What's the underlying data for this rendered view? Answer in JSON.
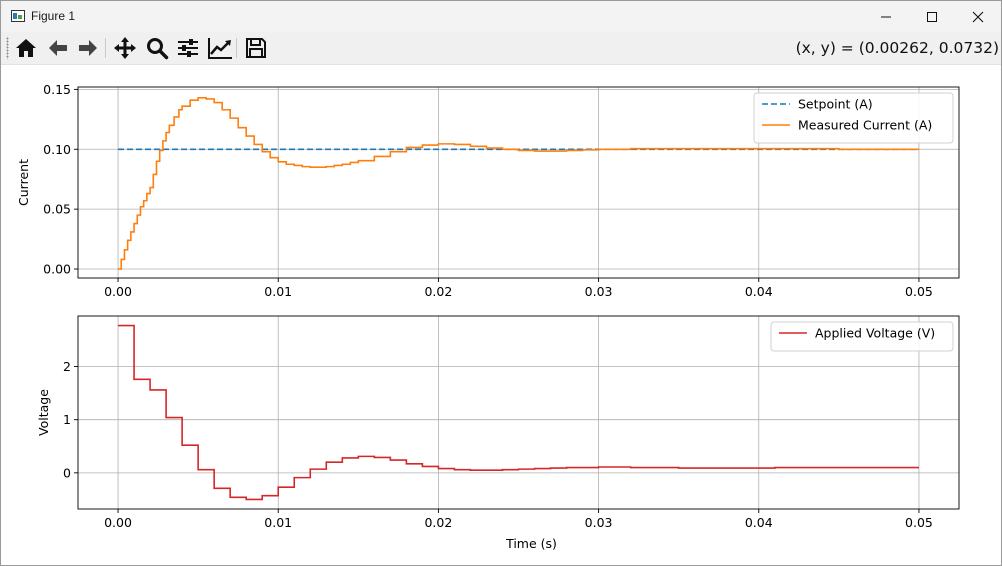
{
  "window": {
    "title": "Figure 1",
    "controls": [
      "minimize",
      "maximize",
      "close"
    ]
  },
  "toolbar": {
    "buttons": [
      {
        "icon": "home-icon",
        "name": "home-button"
      },
      {
        "icon": "back-arrow-icon",
        "name": "back-button"
      },
      {
        "icon": "forward-arrow-icon",
        "name": "forward-button"
      },
      {
        "icon": "move-icon",
        "name": "pan-button"
      },
      {
        "icon": "zoom-icon",
        "name": "zoom-button"
      },
      {
        "icon": "sliders-icon",
        "name": "subplots-button"
      },
      {
        "icon": "trend-icon",
        "name": "axes-edit-button"
      },
      {
        "icon": "save-icon",
        "name": "save-button"
      }
    ],
    "coords_text": "(x, y) = (0.00262, 0.0732)"
  },
  "colors": {
    "setpoint": "#1f77b4",
    "current": "#ff7f0e",
    "voltage": "#d62728",
    "grid": "#b0b0b0"
  },
  "chart_data": [
    {
      "type": "line",
      "xlabel": "",
      "ylabel": "Current",
      "xlim": [
        -0.0025,
        0.0525
      ],
      "ylim": [
        -0.0075,
        0.152
      ],
      "xticks": [
        "0.00",
        "0.01",
        "0.02",
        "0.03",
        "0.04",
        "0.05"
      ],
      "xtick_values": [
        0,
        0.01,
        0.02,
        0.03,
        0.04,
        0.05
      ],
      "yticks": [
        "0.00",
        "0.05",
        "0.10",
        "0.15"
      ],
      "ytick_values": [
        0,
        0.05,
        0.1,
        0.15
      ],
      "grid": true,
      "legend": "top-right",
      "series": [
        {
          "name": "Setpoint (A)",
          "style": "dashed",
          "x": [
            0,
            0.05
          ],
          "y": [
            0.1,
            0.1
          ]
        },
        {
          "name": "Measured Current (A)",
          "style": "step",
          "x": [
            0,
            0.0002,
            0.0004,
            0.0006,
            0.0008,
            0.001,
            0.0012,
            0.0014,
            0.0016,
            0.0018,
            0.002,
            0.0022,
            0.0024,
            0.0026,
            0.0028,
            0.003,
            0.0032,
            0.0035,
            0.0038,
            0.004,
            0.0045,
            0.005,
            0.0055,
            0.006,
            0.0065,
            0.007,
            0.0075,
            0.008,
            0.0085,
            0.009,
            0.0095,
            0.01,
            0.0105,
            0.011,
            0.0115,
            0.012,
            0.0125,
            0.013,
            0.0135,
            0.014,
            0.0145,
            0.015,
            0.016,
            0.017,
            0.018,
            0.019,
            0.02,
            0.021,
            0.022,
            0.023,
            0.024,
            0.025,
            0.026,
            0.027,
            0.028,
            0.029,
            0.03,
            0.032,
            0.035,
            0.04,
            0.045,
            0.05
          ],
          "y": [
            0.0,
            0.008,
            0.016,
            0.024,
            0.031,
            0.038,
            0.045,
            0.052,
            0.057,
            0.063,
            0.068,
            0.079,
            0.09,
            0.099,
            0.107,
            0.114,
            0.12,
            0.127,
            0.133,
            0.136,
            0.141,
            0.143,
            0.142,
            0.139,
            0.133,
            0.126,
            0.118,
            0.111,
            0.104,
            0.098,
            0.093,
            0.0895,
            0.0875,
            0.0865,
            0.0855,
            0.085,
            0.085,
            0.0855,
            0.0865,
            0.0875,
            0.089,
            0.0905,
            0.094,
            0.098,
            0.1015,
            0.1035,
            0.1045,
            0.104,
            0.1025,
            0.101,
            0.1,
            0.099,
            0.0985,
            0.0985,
            0.099,
            0.0995,
            0.1,
            0.1005,
            0.1005,
            0.1005,
            0.1,
            0.1
          ]
        }
      ]
    },
    {
      "type": "line",
      "xlabel": "Time (s)",
      "ylabel": "Voltage",
      "xlim": [
        -0.0025,
        0.0525
      ],
      "ylim": [
        -0.68,
        2.95
      ],
      "xticks": [
        "0.00",
        "0.01",
        "0.02",
        "0.03",
        "0.04",
        "0.05"
      ],
      "xtick_values": [
        0,
        0.01,
        0.02,
        0.03,
        0.04,
        0.05
      ],
      "yticks": [
        "0",
        "1",
        "2"
      ],
      "ytick_values": [
        0,
        1,
        2
      ],
      "grid": true,
      "legend": "top-right",
      "series": [
        {
          "name": "Applied Voltage (V)",
          "style": "step",
          "x": [
            0,
            0.001,
            0.002,
            0.003,
            0.004,
            0.005,
            0.006,
            0.007,
            0.008,
            0.009,
            0.01,
            0.011,
            0.012,
            0.013,
            0.014,
            0.015,
            0.016,
            0.017,
            0.018,
            0.019,
            0.02,
            0.021,
            0.022,
            0.023,
            0.024,
            0.025,
            0.026,
            0.027,
            0.028,
            0.029,
            0.03,
            0.032,
            0.035,
            0.041,
            0.05
          ],
          "y": [
            2.77,
            1.76,
            1.56,
            1.04,
            0.52,
            0.06,
            -0.29,
            -0.46,
            -0.5,
            -0.43,
            -0.27,
            -0.09,
            0.07,
            0.2,
            0.28,
            0.31,
            0.29,
            0.24,
            0.17,
            0.12,
            0.08,
            0.06,
            0.05,
            0.05,
            0.06,
            0.07,
            0.08,
            0.09,
            0.1,
            0.1,
            0.11,
            0.1,
            0.09,
            0.1,
            0.1
          ]
        }
      ]
    }
  ]
}
